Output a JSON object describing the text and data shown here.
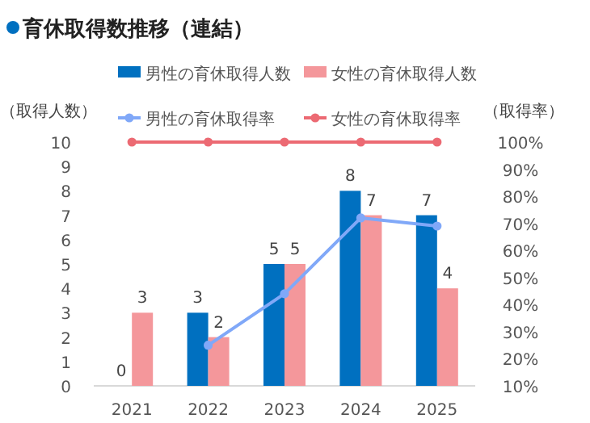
{
  "chart_data": {
    "type": "bar",
    "title": "育休取得数推移（連結）",
    "ylabel": "（取得人数）",
    "y2label": "（取得率）",
    "categories": [
      "2021",
      "2022",
      "2023",
      "2024",
      "2025"
    ],
    "series": [
      {
        "name": "男性の育休取得人数",
        "color": "#0070c0",
        "values": [
          0,
          3,
          5,
          8,
          7
        ],
        "value_labels": [
          "0",
          "3",
          "5",
          "8",
          "7"
        ]
      },
      {
        "name": "女性の育休取得人数",
        "color": "#f4979b",
        "values": [
          3,
          2,
          5,
          7,
          4
        ],
        "value_labels": [
          "3",
          "2",
          "5",
          "7",
          "4"
        ]
      },
      {
        "name": "男性の育休取得率",
        "type": "line",
        "axis": "y2",
        "color": "#80a8f8",
        "values": [
          null,
          25,
          44,
          72,
          69
        ]
      },
      {
        "name": "女性の育休取得率",
        "type": "line",
        "axis": "y2",
        "color": "#ec6a73",
        "values": [
          100,
          100,
          100,
          100,
          100
        ]
      }
    ],
    "ylim": [
      0,
      10
    ],
    "yticks": [
      0,
      1,
      2,
      3,
      4,
      5,
      6,
      7,
      8,
      9,
      10
    ],
    "y2lim": [
      10,
      100
    ],
    "y2ticks": [
      {
        "value": 10,
        "label": "10%"
      },
      {
        "value": 20,
        "label": "20%"
      },
      {
        "value": 30,
        "label": "30%"
      },
      {
        "value": 40,
        "label": "40%"
      },
      {
        "value": 50,
        "label": "50%"
      },
      {
        "value": 60,
        "label": "60%"
      },
      {
        "value": 70,
        "label": "70%"
      },
      {
        "value": 80,
        "label": "80%"
      },
      {
        "value": 90,
        "label": "90%"
      },
      {
        "value": 100,
        "label": "100%"
      }
    ],
    "marker": "circle",
    "legend": "top",
    "grid": false
  }
}
